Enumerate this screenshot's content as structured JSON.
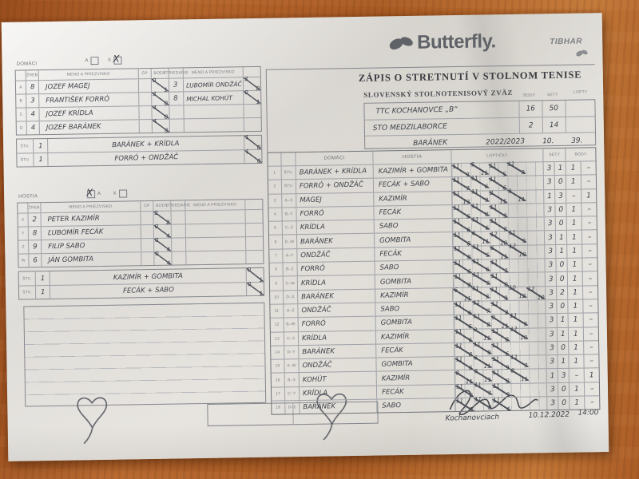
{
  "logos": {
    "butterfly": "Butterfly.",
    "tibhar": "TIBHAR"
  },
  "header": {
    "title": "ZÁPIS O STRETNUTÍ V STOLNOM TENISE",
    "subtitle": "SLOVENSKÝ STOLNOTENISOVÝ ZVÄZ"
  },
  "summary": {
    "col_headers": [
      "BODY",
      "SETY",
      "LOPTY"
    ],
    "rows": [
      {
        "team": "TTC KOCHANOVCE „B“",
        "body": "16",
        "sety": "50"
      },
      {
        "team": "STO MEDZILABORCE",
        "body": "2",
        "sety": "14"
      }
    ],
    "referee": "BARÁNEK",
    "season": "2022/2023",
    "round": "10.",
    "match_no": "39."
  },
  "checkbox": {
    "a": "A",
    "x": "X"
  },
  "roster_headers": {
    "zreb": "ŽREB",
    "name": "MENO A PRIEZVISKO",
    "cp": "ČP",
    "body": "BODY",
    "sub": "STRIEDANIE",
    "sub_name": "MENO A PRIEZVISKO"
  },
  "home": {
    "label": "DOMÁCI",
    "mark": "X",
    "players": [
      {
        "letter": "A",
        "rank": "8",
        "name": "JOZEF MAGEJ",
        "win": "0",
        "loss": "1"
      },
      {
        "letter": "B",
        "rank": "3",
        "name": "FRANTIŠEK FORRÓ",
        "win": "3",
        "loss": "0"
      },
      {
        "letter": "C",
        "rank": "4",
        "name": "JOZEF KRÍDLA",
        "win": "4",
        "loss": "0"
      },
      {
        "letter": "D",
        "rank": "4",
        "name": "JOZEF BARÁNEK",
        "win": "4",
        "loss": "0"
      }
    ],
    "subs": [
      {
        "rank": "3",
        "name": "ĽUBOMÍR ONDŽÁČ",
        "win": "3",
        "loss": "0"
      },
      {
        "rank": "8",
        "name": "MICHAL KOHÚT",
        "win": "0",
        "loss": "1"
      }
    ],
    "doubles": [
      {
        "num": "1",
        "names": "BARÁNEK + KRÍDLA",
        "win": "1",
        "loss": "0"
      },
      {
        "num": "1",
        "names": "FORRÓ + ONDŽÁČ",
        "win": "1",
        "loss": "0"
      }
    ]
  },
  "guest": {
    "label": "HOSTIA",
    "mark": "X",
    "players": [
      {
        "letter": "X",
        "rank": "2",
        "name": "PETER KAZIMÍR",
        "win": "2",
        "loss": "2"
      },
      {
        "letter": "Y",
        "rank": "8",
        "name": "ĽUBOMÍR FECÁK",
        "win": "0",
        "loss": "4"
      },
      {
        "letter": "Z",
        "rank": "9",
        "name": "FILIP SABO",
        "win": "0",
        "loss": "4"
      },
      {
        "letter": "W",
        "rank": "6",
        "name": "JÁN GOMBITA",
        "win": "0",
        "loss": "4"
      }
    ],
    "doubles": [
      {
        "num": "1",
        "names": "KAZIMÍR + GOMBITA",
        "win": "0",
        "loss": "1"
      },
      {
        "num": "1",
        "names": "FECÁK + SABO",
        "win": "0",
        "loss": "1"
      }
    ]
  },
  "main_table": {
    "headers": {
      "domaci": "DOMÁCI",
      "hostia": "HOSTIA",
      "lopticky": "LOPTIČKY",
      "sety": "SETY",
      "body": "BODY"
    },
    "rows": [
      {
        "n": "1",
        "code": "ŠTV.",
        "home": "BARÁNEK + KRÍDLA",
        "guest": "KAZIMÍR + GOMBITA",
        "sets": [
          [
            11,
            7
          ],
          [
            5,
            11
          ],
          [
            11,
            5
          ],
          [
            11,
            9
          ]
        ],
        "sety": [
          "3",
          "1"
        ],
        "body": [
          "1",
          "–"
        ]
      },
      {
        "n": "2",
        "code": "ŠTV.",
        "home": "FORRÓ + ONDŽÁČ",
        "guest": "FECÁK + SABO",
        "sets": [
          [
            11,
            7
          ],
          [
            11,
            6
          ],
          [
            11,
            6
          ]
        ],
        "sety": [
          "3",
          "0"
        ],
        "body": [
          "1",
          "–"
        ]
      },
      {
        "n": "3",
        "code": "A–X",
        "home": "MAGEJ",
        "guest": "KAZIMÍR",
        "sets": [
          [
            11,
            13
          ],
          [
            11,
            9
          ],
          [
            2,
            11
          ],
          [
            9,
            11
          ]
        ],
        "sety": [
          "1",
          "3"
        ],
        "body": [
          "–",
          "1"
        ]
      },
      {
        "n": "4",
        "code": "B–Y",
        "home": "FORRÓ",
        "guest": "FECÁK",
        "sets": [
          [
            11,
            6
          ],
          [
            11,
            8
          ],
          [
            11,
            9
          ]
        ],
        "sety": [
          "3",
          "0"
        ],
        "body": [
          "1",
          "–"
        ]
      },
      {
        "n": "5",
        "code": "C–Z",
        "home": "KRÍDLA",
        "guest": "SABO",
        "sets": [
          [
            11,
            6
          ],
          [
            11,
            6
          ],
          [
            11,
            7
          ]
        ],
        "sety": [
          "3",
          "0"
        ],
        "body": [
          "1",
          "–"
        ]
      },
      {
        "n": "6",
        "code": "D–W",
        "home": "BARÁNEK",
        "guest": "GOMBITA",
        "sets": [
          [
            11,
            8
          ],
          [
            6,
            11
          ],
          [
            12,
            10
          ],
          [
            11,
            9
          ]
        ],
        "sety": [
          "3",
          "1"
        ],
        "body": [
          "1",
          "–"
        ]
      },
      {
        "n": "7",
        "code": "A–Y",
        "home": "ONDŽÁČ",
        "guest": "FECÁK",
        "sets": [
          [
            11,
            8
          ],
          [
            11,
            5
          ],
          [
            6,
            11
          ],
          [
            12,
            10
          ]
        ],
        "sety": [
          "3",
          "1"
        ],
        "body": [
          "1",
          "–"
        ]
      },
      {
        "n": "8",
        "code": "B–Z",
        "home": "FORRÓ",
        "guest": "SABO",
        "sets": [
          [
            11,
            6
          ],
          [
            11,
            6
          ],
          [
            11,
            7
          ]
        ],
        "sety": [
          "3",
          "0"
        ],
        "body": [
          "1",
          "–"
        ]
      },
      {
        "n": "9",
        "code": "C–W",
        "home": "KRÍDLA",
        "guest": "GOMBITA",
        "sets": [
          [
            11,
            8
          ],
          [
            11,
            9
          ],
          [
            11,
            8
          ]
        ],
        "sety": [
          "3",
          "0"
        ],
        "body": [
          "1",
          "–"
        ]
      },
      {
        "n": "10",
        "code": "D–X",
        "home": "BARÁNEK",
        "guest": "KAZIMÍR",
        "sets": [
          [
            6,
            11
          ],
          [
            11,
            3
          ],
          [
            11,
            9
          ],
          [
            10,
            12
          ],
          [
            12,
            10
          ]
        ],
        "sety": [
          "3",
          "2"
        ],
        "body": [
          "1",
          "–"
        ]
      },
      {
        "n": "11",
        "code": "A–Z",
        "home": "ONDŽÁČ",
        "guest": "SABO",
        "sets": [
          [
            11,
            6
          ],
          [
            11,
            7
          ],
          [
            11,
            2
          ]
        ],
        "sety": [
          "3",
          "0"
        ],
        "body": [
          "1",
          "–"
        ]
      },
      {
        "n": "12",
        "code": "B–W",
        "home": "FORRÓ",
        "guest": "GOMBITA",
        "sets": [
          [
            11,
            6
          ],
          [
            11,
            2
          ],
          [
            9,
            11
          ],
          [
            11,
            9
          ]
        ],
        "sety": [
          "3",
          "1"
        ],
        "body": [
          "1",
          "–"
        ]
      },
      {
        "n": "13",
        "code": "C–X",
        "home": "KRÍDLA",
        "guest": "KAZIMÍR",
        "sets": [
          [
            11,
            6
          ],
          [
            9,
            11
          ],
          [
            11,
            8
          ],
          [
            12,
            10
          ]
        ],
        "sety": [
          "3",
          "1"
        ],
        "body": [
          "1",
          "–"
        ]
      },
      {
        "n": "14",
        "code": "D–Y",
        "home": "BARÁNEK",
        "guest": "FECÁK",
        "sets": [
          [
            11,
            8
          ],
          [
            11,
            9
          ],
          [
            11,
            6
          ]
        ],
        "sety": [
          "3",
          "0"
        ],
        "body": [
          "1",
          "–"
        ]
      },
      {
        "n": "15",
        "code": "A–W",
        "home": "ONDŽÁČ",
        "guest": "GOMBITA",
        "sets": [
          [
            11,
            6
          ],
          [
            6,
            11
          ],
          [
            11,
            9
          ],
          [
            11,
            3
          ]
        ],
        "sety": [
          "3",
          "1"
        ],
        "body": [
          "1",
          "–"
        ]
      },
      {
        "n": "16",
        "code": "B–X",
        "home": "KOHÚT",
        "guest": "KAZIMÍR",
        "sets": [
          [
            8,
            11
          ],
          [
            9,
            11
          ],
          [
            11,
            8
          ],
          [
            8,
            11
          ]
        ],
        "sety": [
          "1",
          "3"
        ],
        "body": [
          "–",
          "1"
        ]
      },
      {
        "n": "17",
        "code": "C–Y",
        "home": "KRÍDLA",
        "guest": "FECÁK",
        "sets": [
          [
            11,
            6
          ],
          [
            11,
            7
          ],
          [
            11,
            9
          ]
        ],
        "sety": [
          "3",
          "0"
        ],
        "body": [
          "1",
          "–"
        ]
      },
      {
        "n": "18",
        "code": "D–Z",
        "home": "BARÁNEK",
        "guest": "SABO",
        "sets": [
          [
            11,
            8
          ],
          [
            11,
            8
          ],
          [
            11,
            4
          ]
        ],
        "sety": [
          "3",
          "0"
        ],
        "body": [
          "1",
          "–"
        ]
      }
    ]
  },
  "footer": {
    "place": "Kochanovciach",
    "date": "10.12.2022",
    "time": "14:00"
  },
  "colors": {
    "paper": "#e8e6e1",
    "wood": "#b4652c",
    "ink": "#3f424a",
    "print": "#5d6066"
  }
}
